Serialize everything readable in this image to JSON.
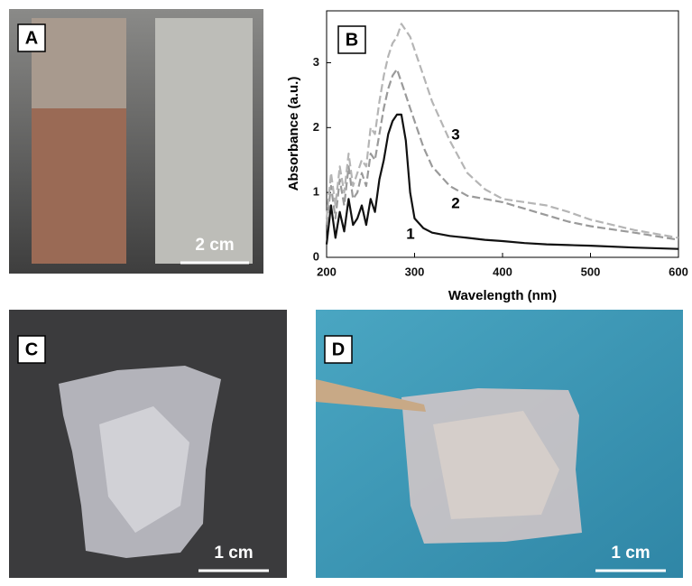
{
  "panels": [
    {
      "label": "A",
      "scale_bar": "2 cm"
    },
    {
      "label": "C",
      "scale_bar": "1 cm"
    },
    {
      "label": "D",
      "scale_bar": "1 cm"
    }
  ],
  "chart_data": {
    "type": "line",
    "panel_label": "B",
    "x_label": "Wavelength (nm)",
    "y_label": "Absorbance (a.u.)",
    "x": [
      200,
      205,
      210,
      215,
      220,
      225,
      230,
      235,
      240,
      245,
      250,
      255,
      260,
      265,
      270,
      275,
      280,
      285,
      290,
      295,
      300,
      310,
      320,
      340,
      360,
      380,
      400,
      425,
      450,
      475,
      500,
      550,
      600
    ],
    "series": [
      {
        "name": "1",
        "color": "#111111",
        "dashed": false,
        "values": [
          0.2,
          0.8,
          0.3,
          0.7,
          0.4,
          0.9,
          0.5,
          0.6,
          0.8,
          0.5,
          0.9,
          0.7,
          1.2,
          1.5,
          1.9,
          2.1,
          2.2,
          2.2,
          1.8,
          1.0,
          0.6,
          0.45,
          0.38,
          0.33,
          0.3,
          0.27,
          0.25,
          0.22,
          0.2,
          0.19,
          0.18,
          0.15,
          0.13
        ]
      },
      {
        "name": "2",
        "color": "#9a9a9a",
        "dashed": true,
        "values": [
          0.5,
          1.1,
          0.6,
          1.2,
          0.8,
          1.4,
          0.9,
          1.0,
          1.3,
          1.1,
          1.6,
          1.5,
          1.9,
          2.3,
          2.6,
          2.8,
          2.9,
          2.7,
          2.5,
          2.3,
          2.1,
          1.7,
          1.4,
          1.1,
          0.95,
          0.9,
          0.85,
          0.75,
          0.65,
          0.55,
          0.48,
          0.38,
          0.27
        ]
      },
      {
        "name": "3",
        "color": "#b5b5b5",
        "dashed": true,
        "values": [
          0.6,
          1.3,
          0.8,
          1.4,
          1.0,
          1.6,
          1.1,
          1.3,
          1.5,
          1.4,
          2.0,
          1.9,
          2.4,
          2.8,
          3.1,
          3.3,
          3.4,
          3.6,
          3.5,
          3.4,
          3.2,
          2.8,
          2.4,
          1.8,
          1.3,
          1.05,
          0.9,
          0.85,
          0.8,
          0.7,
          0.58,
          0.42,
          0.3
        ]
      }
    ],
    "xlim": [
      200,
      600
    ],
    "xticks": [
      200,
      300,
      400,
      500,
      600
    ],
    "ylim": [
      0,
      3.8
    ],
    "yticks": [
      0,
      1,
      2,
      3
    ]
  }
}
